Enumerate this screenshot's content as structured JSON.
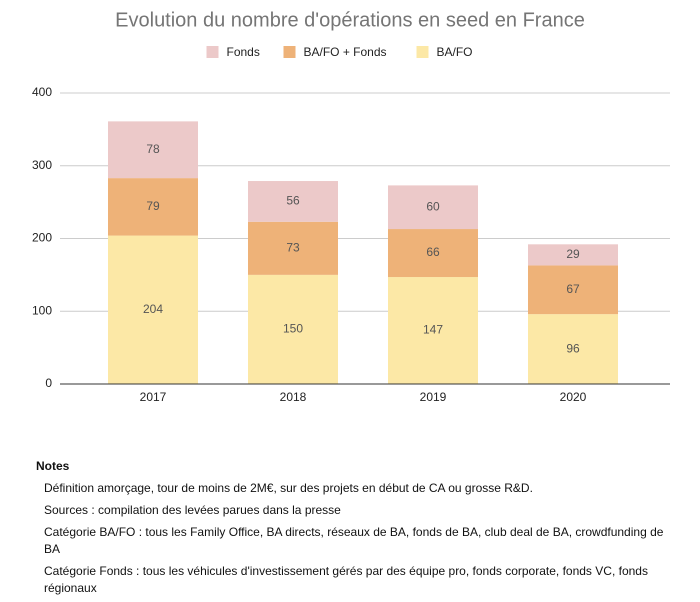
{
  "chart_data": {
    "type": "stacked-bar",
    "title": "Evolution du nombre d'opérations en seed en France",
    "categories": [
      "2017",
      "2018",
      "2019",
      "2020"
    ],
    "series": [
      {
        "name": "BA/FO",
        "color": "#fce8a6",
        "values": [
          204,
          150,
          147,
          96
        ]
      },
      {
        "name": "BA/FO + Fonds",
        "color": "#eeb278",
        "values": [
          79,
          73,
          66,
          67
        ]
      },
      {
        "name": "Fonds",
        "color": "#ecc9c9",
        "values": [
          78,
          56,
          60,
          29
        ]
      }
    ],
    "ylim": [
      0,
      400
    ],
    "yticks": [
      0,
      100,
      200,
      300,
      400
    ],
    "grid": true,
    "legend": "top"
  },
  "notes": {
    "title": "Notes",
    "lines": [
      "Définition amorçage, tour de moins de 2M€, sur des projets en début de CA ou grosse R&D.",
      "Sources : compilation des levées parues dans la presse",
      "Catégorie BA/FO : tous les Family Office, BA directs, réseaux de BA, fonds de BA, club deal de BA, crowdfunding de BA",
      "Catégorie Fonds : tous les véhicules d'investissement gérés par des équipe pro, fonds corporate, fonds VC, fonds régionaux"
    ]
  }
}
